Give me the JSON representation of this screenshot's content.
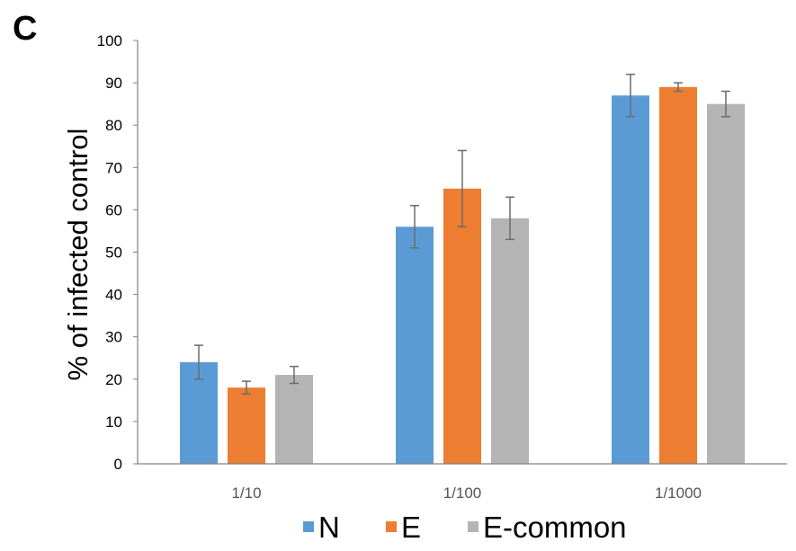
{
  "panel_label": "C",
  "chart_data": {
    "type": "bar",
    "title": "",
    "xlabel": "",
    "ylabel": "% of infected control",
    "ylim": [
      0,
      100
    ],
    "yticks": [
      0,
      10,
      20,
      30,
      40,
      50,
      60,
      70,
      80,
      90,
      100
    ],
    "grid": false,
    "legend_position": "bottom",
    "categories": [
      "1/10",
      "1/100",
      "1/1000"
    ],
    "series": [
      {
        "name": "N",
        "color": "#5b9bd5",
        "values": [
          24,
          56,
          87
        ],
        "errors": [
          4,
          5,
          5
        ]
      },
      {
        "name": "E",
        "color": "#ed7d31",
        "values": [
          18,
          65,
          89
        ],
        "errors": [
          1.5,
          9,
          1
        ]
      },
      {
        "name": "E-common",
        "color": "#b4b4b4",
        "values": [
          21,
          58,
          85
        ],
        "errors": [
          2,
          5,
          3
        ]
      }
    ]
  }
}
